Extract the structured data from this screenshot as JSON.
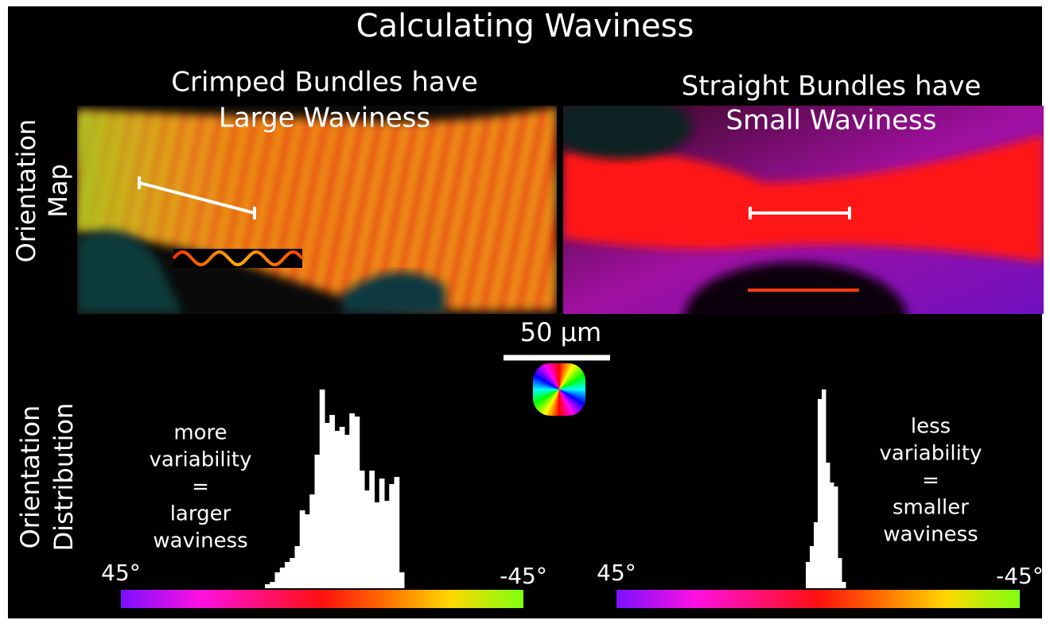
{
  "title": "Calculating Waviness",
  "scale_bar": "50 μm",
  "row_labels": [
    [
      "Orientation",
      "Map"
    ],
    [
      "Orientation",
      "Distribution"
    ]
  ],
  "panels": [
    {
      "heading": [
        "Crimped Bundles have",
        "Large Waviness"
      ],
      "note": [
        "more",
        "variability",
        "=",
        "larger",
        "waviness"
      ],
      "histogram": {
        "type": "histogram",
        "values": [
          5,
          8,
          20,
          26,
          33,
          38,
          53,
          98,
          93,
          118,
          168,
          250,
          208,
          218,
          198,
          203,
          193,
          220,
          216,
          148,
          123,
          148,
          108,
          138,
          110,
          131,
          140,
          20
        ]
      },
      "colorbar": {
        "left": "45°",
        "right": "-45°"
      }
    },
    {
      "heading": [
        "Straight Bundles have",
        "Small Waviness"
      ],
      "note": [
        "less",
        "variability",
        "=",
        "smaller",
        "waviness"
      ],
      "histogram": {
        "type": "histogram",
        "values": [
          33,
          53,
          83,
          238,
          250,
          158,
          133,
          128,
          38,
          8
        ]
      },
      "colorbar": {
        "left": "45°",
        "right": "-45°"
      }
    }
  ]
}
